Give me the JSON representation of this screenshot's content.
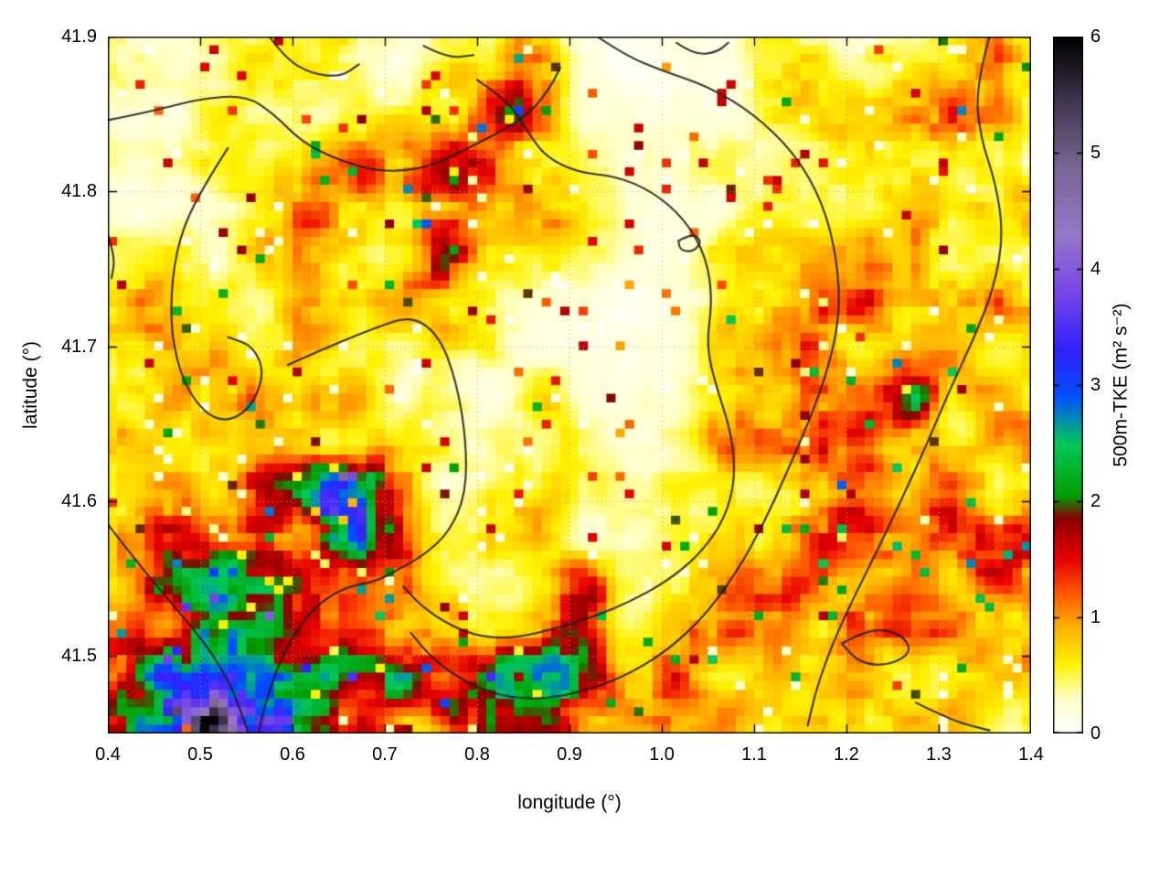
{
  "figure": {
    "background": "#ffffff",
    "frame_color": "#000000"
  },
  "chart_data": {
    "type": "heatmap",
    "title": "",
    "xlabel": "longitude (°)",
    "ylabel": "latitude (°)",
    "x_range": [
      0.4,
      1.4
    ],
    "y_range": [
      41.45,
      41.9
    ],
    "x_ticks": [
      0.4,
      0.5,
      0.6,
      0.7,
      0.8,
      0.9,
      1.0,
      1.1,
      1.2,
      1.3,
      1.4
    ],
    "x_tick_labels": [
      "0.4",
      "0.5",
      "0.6",
      "0.7",
      "0.8",
      "0.9",
      "1.0",
      "1.1",
      "1.2",
      "1.3",
      "1.4"
    ],
    "y_ticks": [
      41.5,
      41.6,
      41.7,
      41.8,
      41.9
    ],
    "y_tick_labels": [
      "41.5",
      "41.6",
      "41.7",
      "41.8",
      "41.9"
    ],
    "grid_on": true,
    "grid_style": "dotted",
    "grid_color": "#aaaaaa",
    "colorbar": {
      "label": "500m-TKE (m² s⁻²)",
      "range": [
        0,
        6
      ],
      "ticks": [
        0,
        1,
        2,
        3,
        4,
        5,
        6
      ],
      "tick_labels": [
        "0",
        "1",
        "2",
        "3",
        "4",
        "5",
        "6"
      ],
      "position": "right"
    },
    "colormap_stops": [
      [
        0.0,
        "#ffffff"
      ],
      [
        0.3,
        "#ffffc8"
      ],
      [
        0.6,
        "#fff200"
      ],
      [
        0.9,
        "#ffb400"
      ],
      [
        1.2,
        "#ff5a00"
      ],
      [
        1.5,
        "#e60000"
      ],
      [
        1.85,
        "#8c0000"
      ],
      [
        2.05,
        "#00a000"
      ],
      [
        2.5,
        "#00c85a"
      ],
      [
        2.9,
        "#0050ff"
      ],
      [
        3.3,
        "#3220ff"
      ],
      [
        3.8,
        "#7846e6"
      ],
      [
        4.3,
        "#9678c8"
      ],
      [
        4.9,
        "#786492"
      ],
      [
        5.4,
        "#463a55"
      ],
      [
        6.0,
        "#000000"
      ]
    ],
    "grid_values_note": "approximate 500m-TKE field (m2/s2), 20 rows (lat 41.90 top -> 41.45 bottom) x 26 cols (lon 0.40 -> 1.40)",
    "values": [
      [
        0.3,
        0.2,
        0.2,
        0.3,
        0.4,
        0.5,
        0.4,
        0.3,
        0.2,
        0.3,
        0.5,
        0.8,
        0.5,
        0.2,
        0.1,
        0.2,
        0.2,
        0.3,
        0.4,
        0.4,
        0.3,
        0.4,
        0.5,
        0.6,
        0.9,
        0.7
      ],
      [
        0.4,
        0.3,
        0.2,
        0.3,
        0.5,
        0.6,
        0.4,
        0.3,
        0.3,
        0.4,
        0.6,
        1.1,
        0.7,
        0.3,
        0.1,
        0.1,
        0.2,
        0.3,
        0.5,
        0.5,
        0.4,
        0.4,
        0.5,
        0.8,
        0.8,
        0.6
      ],
      [
        0.5,
        0.4,
        0.3,
        0.5,
        0.4,
        0.4,
        0.4,
        0.4,
        0.5,
        0.6,
        0.7,
        1.2,
        0.8,
        0.4,
        0.2,
        0.1,
        0.2,
        0.3,
        0.5,
        0.6,
        0.5,
        0.5,
        0.7,
        0.9,
        0.7,
        0.5
      ],
      [
        0.4,
        0.3,
        0.3,
        0.4,
        0.8,
        0.5,
        0.5,
        0.7,
        0.9,
        1.0,
        1.0,
        0.9,
        0.6,
        0.3,
        0.2,
        0.2,
        0.3,
        0.3,
        0.4,
        0.5,
        0.6,
        0.6,
        0.8,
        0.8,
        0.6,
        0.5
      ],
      [
        0.3,
        0.3,
        0.3,
        0.4,
        1.0,
        0.6,
        0.9,
        1.2,
        1.3,
        1.4,
        1.3,
        1.0,
        0.7,
        0.4,
        0.2,
        0.2,
        0.3,
        0.4,
        0.4,
        0.5,
        0.6,
        0.7,
        0.9,
        0.7,
        0.6,
        0.6
      ],
      [
        0.4,
        0.3,
        0.4,
        0.5,
        0.6,
        0.8,
        0.8,
        0.7,
        0.9,
        1.3,
        1.2,
        0.9,
        0.9,
        0.4,
        0.2,
        0.2,
        0.3,
        0.5,
        0.6,
        0.7,
        0.7,
        0.8,
        1.2,
        0.8,
        0.7,
        0.7
      ],
      [
        0.5,
        0.4,
        0.4,
        0.4,
        0.5,
        0.6,
        0.6,
        0.6,
        0.8,
        1.3,
        0.9,
        0.5,
        0.4,
        0.3,
        0.2,
        0.2,
        0.3,
        0.5,
        0.7,
        0.8,
        0.8,
        0.9,
        1.0,
        0.9,
        0.8,
        0.6
      ],
      [
        0.4,
        0.6,
        0.5,
        0.6,
        0.5,
        0.5,
        0.5,
        0.6,
        0.7,
        1.1,
        0.7,
        0.4,
        0.3,
        0.2,
        0.1,
        0.2,
        0.3,
        0.5,
        0.8,
        0.9,
        0.9,
        1.0,
        0.9,
        0.8,
        0.7,
        0.6
      ],
      [
        0.5,
        0.7,
        0.5,
        0.5,
        0.6,
        0.8,
        0.8,
        0.6,
        0.6,
        0.8,
        0.5,
        0.3,
        0.2,
        0.2,
        0.1,
        0.2,
        0.4,
        0.6,
        0.9,
        1.0,
        0.9,
        0.9,
        0.9,
        0.9,
        0.8,
        0.7
      ],
      [
        0.4,
        0.5,
        0.8,
        1.0,
        0.8,
        0.7,
        0.6,
        0.7,
        0.5,
        0.4,
        0.3,
        0.3,
        0.4,
        0.2,
        0.1,
        0.2,
        0.4,
        0.7,
        1.0,
        1.0,
        0.9,
        1.0,
        1.3,
        1.0,
        0.8,
        0.8
      ],
      [
        0.5,
        0.6,
        0.9,
        1.3,
        1.2,
        0.9,
        0.9,
        0.7,
        0.5,
        0.4,
        0.3,
        0.3,
        0.5,
        0.3,
        0.2,
        0.3,
        0.5,
        0.8,
        1.0,
        0.9,
        0.9,
        1.2,
        2.0,
        1.1,
        0.9,
        0.9
      ],
      [
        0.5,
        0.6,
        0.8,
        1.2,
        1.4,
        1.3,
        1.0,
        0.8,
        0.5,
        0.3,
        0.3,
        0.4,
        0.6,
        0.4,
        0.3,
        0.3,
        0.5,
        0.8,
        0.9,
        0.9,
        1.0,
        1.1,
        1.1,
        1.0,
        1.0,
        0.9
      ],
      [
        0.6,
        0.7,
        0.9,
        1.1,
        1.5,
        1.6,
        2.4,
        2.6,
        1.2,
        0.5,
        0.3,
        0.5,
        0.9,
        0.5,
        0.3,
        0.3,
        0.4,
        0.7,
        0.9,
        1.0,
        0.9,
        1.0,
        1.1,
        1.0,
        0.9,
        1.0
      ],
      [
        0.6,
        0.8,
        1.0,
        1.2,
        1.5,
        1.8,
        3.0,
        2.4,
        1.4,
        0.6,
        0.4,
        0.6,
        0.8,
        0.4,
        0.3,
        0.3,
        0.4,
        0.6,
        0.8,
        0.9,
        0.9,
        0.9,
        1.0,
        1.1,
        1.0,
        1.1
      ],
      [
        0.7,
        1.0,
        1.4,
        1.6,
        1.5,
        1.4,
        1.8,
        2.0,
        1.8,
        0.8,
        0.5,
        0.7,
        0.6,
        0.4,
        0.3,
        0.4,
        0.5,
        0.6,
        0.8,
        0.9,
        0.9,
        0.9,
        0.9,
        1.0,
        1.2,
        1.2
      ],
      [
        0.8,
        1.1,
        1.5,
        1.6,
        1.6,
        1.5,
        1.3,
        1.6,
        1.8,
        1.0,
        0.5,
        0.6,
        0.9,
        1.5,
        0.5,
        0.4,
        0.6,
        0.8,
        1.0,
        1.0,
        0.9,
        0.9,
        0.9,
        0.9,
        1.0,
        1.0
      ],
      [
        0.9,
        1.2,
        1.5,
        1.7,
        1.9,
        1.6,
        1.4,
        1.2,
        0.8,
        0.6,
        0.7,
        1.0,
        1.8,
        1.2,
        0.6,
        0.7,
        0.9,
        1.0,
        1.0,
        0.9,
        0.9,
        0.8,
        0.8,
        0.8,
        0.9,
        0.9
      ],
      [
        1.2,
        1.6,
        2.0,
        2.2,
        1.9,
        1.7,
        1.6,
        1.6,
        1.3,
        0.9,
        1.2,
        1.5,
        2.0,
        1.3,
        0.8,
        1.0,
        1.0,
        0.9,
        0.9,
        0.8,
        0.8,
        0.8,
        0.8,
        0.9,
        0.9,
        0.8
      ],
      [
        2.0,
        2.6,
        3.2,
        2.8,
        2.2,
        2.2,
        2.0,
        1.7,
        1.7,
        1.4,
        1.3,
        1.7,
        2.0,
        1.4,
        1.0,
        1.0,
        0.9,
        0.8,
        0.9,
        0.9,
        0.9,
        0.8,
        0.7,
        0.7,
        0.7,
        0.6
      ],
      [
        2.5,
        3.6,
        4.5,
        4.0,
        3.0,
        2.6,
        2.4,
        2.2,
        1.0,
        0.6,
        1.3,
        1.6,
        2.0,
        1.2,
        0.8,
        0.8,
        0.8,
        0.8,
        0.7,
        0.8,
        0.8,
        0.7,
        0.6,
        0.6,
        0.5,
        0.4
      ]
    ],
    "contour_color": "#1e1e1e",
    "contours": [
      [
        [
          0.4,
          41.846
        ],
        [
          0.45,
          41.852
        ],
        [
          0.5,
          41.86
        ],
        [
          0.55,
          41.862
        ],
        [
          0.58,
          41.85
        ],
        [
          0.61,
          41.832
        ],
        [
          0.65,
          41.82
        ],
        [
          0.7,
          41.812
        ],
        [
          0.75,
          41.816
        ],
        [
          0.79,
          41.828
        ],
        [
          0.83,
          41.84
        ],
        [
          0.86,
          41.852
        ],
        [
          0.88,
          41.868
        ],
        [
          0.89,
          41.88
        ]
      ],
      [
        [
          0.53,
          41.828
        ],
        [
          0.5,
          41.8
        ],
        [
          0.477,
          41.77
        ],
        [
          0.468,
          41.735
        ],
        [
          0.47,
          41.7
        ],
        [
          0.488,
          41.668
        ],
        [
          0.52,
          41.65
        ],
        [
          0.553,
          41.658
        ],
        [
          0.57,
          41.682
        ],
        [
          0.558,
          41.7
        ],
        [
          0.53,
          41.706
        ]
      ],
      [
        [
          0.595,
          41.688
        ],
        [
          0.64,
          41.7
        ],
        [
          0.69,
          41.712
        ],
        [
          0.73,
          41.72
        ],
        [
          0.76,
          41.706
        ],
        [
          0.778,
          41.676
        ],
        [
          0.788,
          41.64
        ],
        [
          0.788,
          41.605
        ],
        [
          0.77,
          41.58
        ],
        [
          0.742,
          41.565
        ],
        [
          0.715,
          41.556
        ],
        [
          0.69,
          41.548
        ],
        [
          0.66,
          41.545
        ],
        [
          0.63,
          41.535
        ],
        [
          0.603,
          41.516
        ],
        [
          0.583,
          41.492
        ],
        [
          0.57,
          41.468
        ],
        [
          0.563,
          41.45
        ]
      ],
      [
        [
          0.8,
          41.872
        ],
        [
          0.835,
          41.858
        ],
        [
          0.855,
          41.838
        ],
        [
          0.875,
          41.822
        ],
        [
          0.91,
          41.812
        ],
        [
          0.95,
          41.81
        ],
        [
          0.99,
          41.8
        ],
        [
          1.025,
          41.782
        ],
        [
          1.048,
          41.758
        ],
        [
          1.055,
          41.73
        ],
        [
          1.048,
          41.7
        ],
        [
          1.06,
          41.672
        ],
        [
          1.075,
          41.645
        ],
        [
          1.08,
          41.615
        ],
        [
          1.068,
          41.588
        ],
        [
          1.04,
          41.565
        ],
        [
          1.005,
          41.548
        ],
        [
          0.965,
          41.535
        ],
        [
          0.925,
          41.525
        ],
        [
          0.885,
          41.518
        ],
        [
          0.845,
          41.512
        ],
        [
          0.805,
          41.512
        ],
        [
          0.77,
          41.52
        ],
        [
          0.74,
          41.532
        ],
        [
          0.72,
          41.545
        ]
      ],
      [
        [
          0.93,
          41.9
        ],
        [
          0.96,
          41.888
        ],
        [
          1.0,
          41.878
        ],
        [
          1.05,
          41.868
        ],
        [
          1.1,
          41.85
        ],
        [
          1.145,
          41.824
        ],
        [
          1.175,
          41.792
        ],
        [
          1.19,
          41.756
        ],
        [
          1.193,
          41.72
        ],
        [
          1.18,
          41.685
        ],
        [
          1.16,
          41.652
        ],
        [
          1.135,
          41.618
        ],
        [
          1.11,
          41.585
        ],
        [
          1.08,
          41.553
        ],
        [
          1.045,
          41.525
        ],
        [
          1.005,
          41.503
        ],
        [
          0.96,
          41.487
        ],
        [
          0.915,
          41.477
        ],
        [
          0.87,
          41.472
        ],
        [
          0.825,
          41.474
        ],
        [
          0.785,
          41.484
        ],
        [
          0.752,
          41.498
        ],
        [
          0.728,
          41.515
        ]
      ],
      [
        [
          1.355,
          41.9
        ],
        [
          1.34,
          41.868
        ],
        [
          1.345,
          41.835
        ],
        [
          1.362,
          41.805
        ],
        [
          1.37,
          41.772
        ],
        [
          1.36,
          41.738
        ],
        [
          1.338,
          41.705
        ],
        [
          1.312,
          41.672
        ],
        [
          1.288,
          41.638
        ],
        [
          1.262,
          41.604
        ],
        [
          1.235,
          41.57
        ],
        [
          1.208,
          41.538
        ],
        [
          1.185,
          41.508
        ],
        [
          1.168,
          41.48
        ],
        [
          1.158,
          41.455
        ]
      ],
      [
        [
          1.195,
          41.508
        ],
        [
          1.225,
          41.518
        ],
        [
          1.258,
          41.515
        ],
        [
          1.272,
          41.503
        ],
        [
          1.247,
          41.494
        ],
        [
          1.215,
          41.495
        ],
        [
          1.195,
          41.508
        ]
      ],
      [
        [
          1.275,
          41.47
        ],
        [
          1.315,
          41.458
        ],
        [
          1.355,
          41.452
        ]
      ],
      [
        [
          0.575,
          41.9
        ],
        [
          0.592,
          41.886
        ],
        [
          0.62,
          41.876
        ],
        [
          0.652,
          41.874
        ],
        [
          0.672,
          41.882
        ]
      ],
      [
        [
          0.742,
          41.894
        ],
        [
          0.768,
          41.886
        ],
        [
          0.796,
          41.888
        ]
      ],
      [
        [
          1.016,
          41.896
        ],
        [
          1.036,
          41.888
        ],
        [
          1.06,
          41.89
        ],
        [
          1.072,
          41.896
        ]
      ],
      [
        [
          1.018,
          41.768
        ],
        [
          1.032,
          41.773
        ],
        [
          1.044,
          41.768
        ],
        [
          1.034,
          41.761
        ],
        [
          1.02,
          41.762
        ],
        [
          1.018,
          41.768
        ]
      ],
      [
        [
          0.4,
          41.585
        ],
        [
          0.435,
          41.558
        ],
        [
          0.472,
          41.532
        ],
        [
          0.507,
          41.507
        ],
        [
          0.532,
          41.483
        ],
        [
          0.548,
          41.458
        ],
        [
          0.552,
          41.45
        ]
      ],
      [
        [
          0.4,
          41.772
        ],
        [
          0.408,
          41.758
        ],
        [
          0.404,
          41.744
        ]
      ]
    ]
  }
}
